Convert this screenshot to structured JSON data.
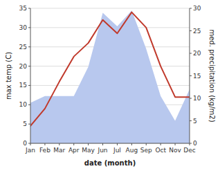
{
  "chart_data": {
    "type": "line",
    "categories": [
      "Jan",
      "Feb",
      "Mar",
      "Apr",
      "May",
      "Jun",
      "Jul",
      "Aug",
      "Sep",
      "Oct",
      "Nov",
      "Dec"
    ],
    "series": [
      {
        "type": "area",
        "color": "#b8c8ee",
        "axis": "y2",
        "values": [
          9.0,
          10.5,
          10.5,
          10.5,
          17.0,
          29.0,
          26.0,
          29.5,
          21.0,
          10.5,
          5.0,
          12.0
        ]
      },
      {
        "type": "line",
        "color": "#c0392b",
        "values": [
          4.5,
          9.0,
          16.0,
          22.5,
          26.0,
          32.0,
          28.5,
          34.0,
          30.0,
          20.0,
          12.0,
          12.0
        ]
      }
    ],
    "xlabel": "date (month)",
    "ylabel": "max temp (C)",
    "y2label": "med. precipitation (kg/m2)",
    "ylim": [
      0,
      35
    ],
    "yticks": [
      0,
      5,
      10,
      15,
      20,
      25,
      30,
      35
    ],
    "y2lim": [
      0,
      30
    ],
    "y2ticks": [
      0,
      5,
      10,
      15,
      20,
      25,
      30
    ],
    "grid": true
  }
}
